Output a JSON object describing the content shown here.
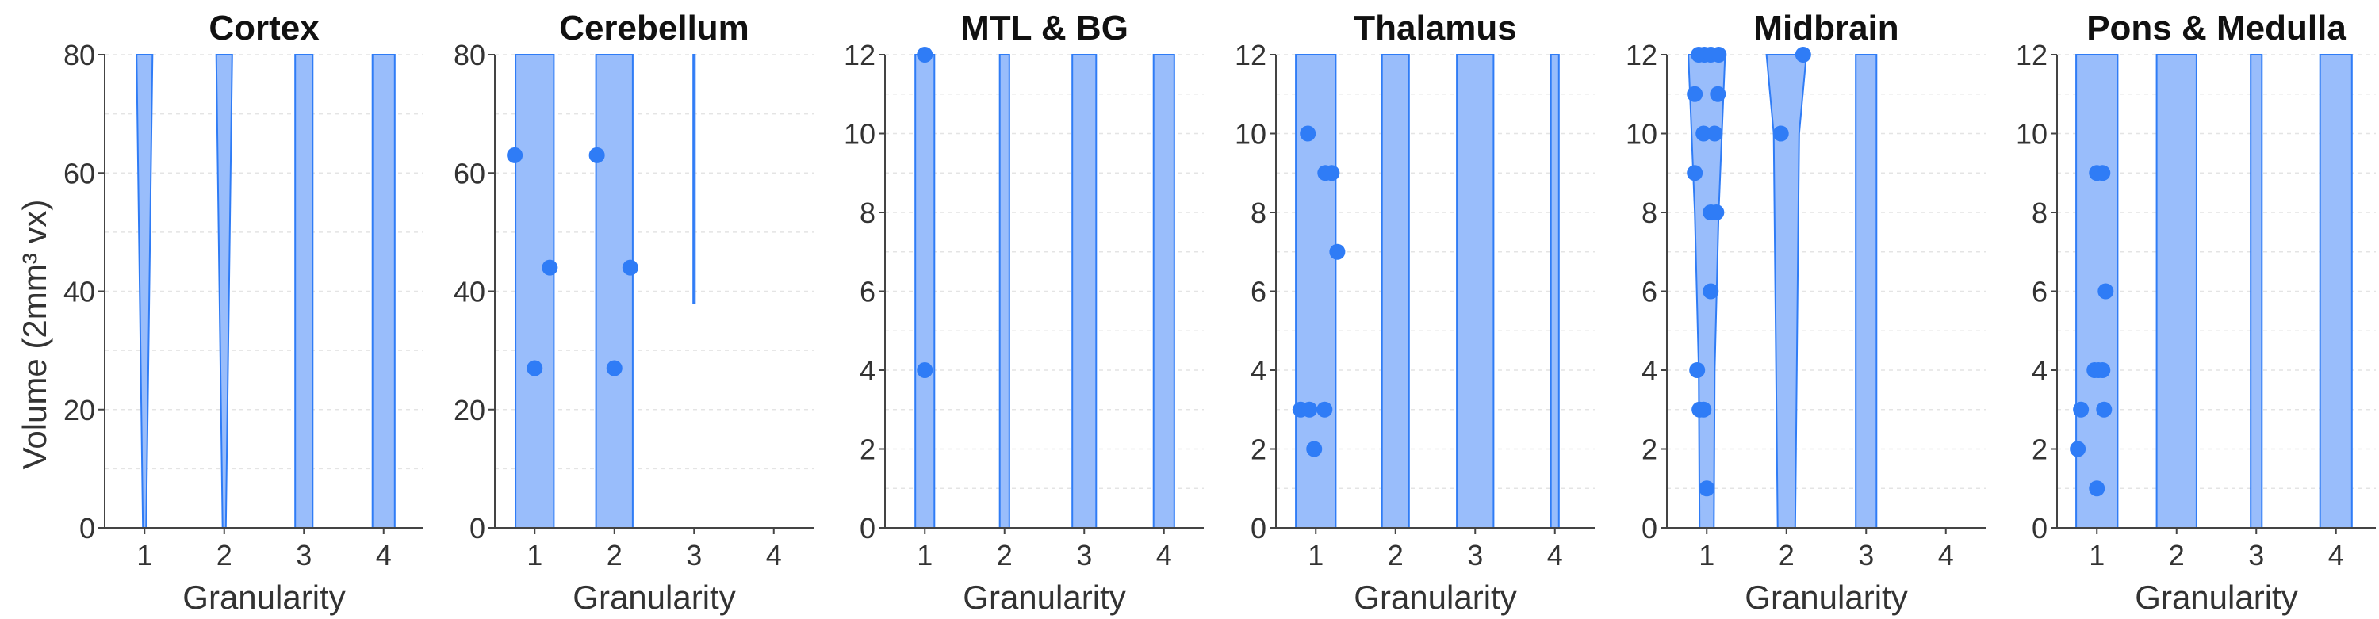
{
  "chart_data": {
    "type": "violin",
    "ylabel": "Volume (2mm³ vx)",
    "colors": {
      "fill": "#99bdfb",
      "stroke": "#2f7cf6",
      "point": "#2f7cf6"
    },
    "panels": [
      {
        "title": "Cortex",
        "xlabel": "Granularity",
        "xticks": [
          1,
          2,
          3,
          4
        ],
        "ylim": [
          0,
          80
        ],
        "yticks": [
          0,
          20,
          40,
          60,
          80
        ],
        "violins": [
          {
            "x": 1,
            "shape": [
              [
                0,
                0.02
              ],
              [
                80,
                0.1
              ]
            ]
          },
          {
            "x": 2,
            "shape": [
              [
                0,
                0.02
              ],
              [
                80,
                0.1
              ]
            ]
          },
          {
            "x": 3,
            "shape": [
              [
                0,
                0.11
              ],
              [
                80,
                0.11
              ]
            ]
          },
          {
            "x": 4,
            "shape": [
              [
                0,
                0.14
              ],
              [
                80,
                0.14
              ]
            ]
          }
        ],
        "points": []
      },
      {
        "title": "Cerebellum",
        "xlabel": "Granularity",
        "xticks": [
          1,
          2,
          3,
          4
        ],
        "ylim": [
          0,
          80
        ],
        "yticks": [
          0,
          20,
          40,
          60,
          80
        ],
        "violins": [
          {
            "x": 1,
            "shape": [
              [
                0,
                0.24
              ],
              [
                80,
                0.24
              ]
            ]
          },
          {
            "x": 2,
            "shape": [
              [
                0,
                0.23
              ],
              [
                80,
                0.23
              ]
            ]
          },
          {
            "x": 3,
            "shape": [
              [
                38,
                0.01
              ],
              [
                80,
                0.01
              ]
            ]
          }
        ],
        "points": [
          {
            "x": 0.75,
            "y": 63
          },
          {
            "x": 1.19,
            "y": 44
          },
          {
            "x": 1.0,
            "y": 27
          },
          {
            "x": 1.78,
            "y": 63
          },
          {
            "x": 2.2,
            "y": 44
          },
          {
            "x": 2.0,
            "y": 27
          }
        ]
      },
      {
        "title": "MTL & BG",
        "xlabel": "Granularity",
        "xticks": [
          1,
          2,
          3,
          4
        ],
        "ylim": [
          0,
          12
        ],
        "yticks": [
          0,
          2,
          4,
          6,
          8,
          10,
          12
        ],
        "violins": [
          {
            "x": 1,
            "shape": [
              [
                0,
                0.12
              ],
              [
                12,
                0.12
              ]
            ]
          },
          {
            "x": 2,
            "shape": [
              [
                0,
                0.06
              ],
              [
                12,
                0.06
              ]
            ]
          },
          {
            "x": 3,
            "shape": [
              [
                0,
                0.15
              ],
              [
                12,
                0.15
              ]
            ]
          },
          {
            "x": 4,
            "shape": [
              [
                0,
                0.13
              ],
              [
                12,
                0.13
              ]
            ]
          }
        ],
        "points": [
          {
            "x": 1.0,
            "y": 12
          },
          {
            "x": 1.0,
            "y": 4
          }
        ]
      },
      {
        "title": "Thalamus",
        "xlabel": "Granularity",
        "xticks": [
          1,
          2,
          3,
          4
        ],
        "ylim": [
          0,
          12
        ],
        "yticks": [
          0,
          2,
          4,
          6,
          8,
          10,
          12
        ],
        "violins": [
          {
            "x": 1,
            "shape": [
              [
                0,
                0.25
              ],
              [
                12,
                0.25
              ]
            ]
          },
          {
            "x": 2,
            "shape": [
              [
                0,
                0.17
              ],
              [
                12,
                0.17
              ]
            ]
          },
          {
            "x": 3,
            "shape": [
              [
                0,
                0.23
              ],
              [
                12,
                0.23
              ]
            ]
          },
          {
            "x": 4,
            "shape": [
              [
                0,
                0.05
              ],
              [
                12,
                0.05
              ]
            ]
          }
        ],
        "points": [
          {
            "x": 0.9,
            "y": 10
          },
          {
            "x": 1.12,
            "y": 9
          },
          {
            "x": 1.2,
            "y": 9
          },
          {
            "x": 1.27,
            "y": 7
          },
          {
            "x": 0.81,
            "y": 3
          },
          {
            "x": 0.92,
            "y": 3
          },
          {
            "x": 1.11,
            "y": 3
          },
          {
            "x": 0.98,
            "y": 2
          }
        ]
      },
      {
        "title": "Midbrain",
        "xlabel": "Granularity",
        "xticks": [
          1,
          2,
          3,
          4
        ],
        "ylim": [
          0,
          12
        ],
        "yticks": [
          0,
          2,
          4,
          6,
          8,
          10,
          12
        ],
        "violins": [
          {
            "x": 1,
            "shape": [
              [
                0,
                0.09
              ],
              [
                4,
                0.1
              ],
              [
                8,
                0.15
              ],
              [
                12,
                0.23
              ]
            ]
          },
          {
            "x": 2,
            "shape": [
              [
                0,
                0.11
              ],
              [
                10,
                0.16
              ],
              [
                12,
                0.25
              ]
            ]
          },
          {
            "x": 3,
            "shape": [
              [
                0,
                0.13
              ],
              [
                12,
                0.13
              ]
            ]
          }
        ],
        "points": [
          {
            "x": 0.9,
            "y": 12
          },
          {
            "x": 0.97,
            "y": 12
          },
          {
            "x": 1.05,
            "y": 12
          },
          {
            "x": 1.15,
            "y": 12
          },
          {
            "x": 0.85,
            "y": 11
          },
          {
            "x": 1.14,
            "y": 11
          },
          {
            "x": 0.96,
            "y": 10
          },
          {
            "x": 1.1,
            "y": 10
          },
          {
            "x": 0.85,
            "y": 9
          },
          {
            "x": 1.05,
            "y": 8
          },
          {
            "x": 1.12,
            "y": 8
          },
          {
            "x": 1.05,
            "y": 6
          },
          {
            "x": 0.88,
            "y": 4
          },
          {
            "x": 0.91,
            "y": 3
          },
          {
            "x": 0.96,
            "y": 3
          },
          {
            "x": 1.0,
            "y": 1
          },
          {
            "x": 2.21,
            "y": 12
          },
          {
            "x": 1.93,
            "y": 10
          }
        ]
      },
      {
        "title": "Pons & Medulla",
        "xlabel": "Granularity",
        "xticks": [
          1,
          2,
          3,
          4
        ],
        "ylim": [
          0,
          12
        ],
        "yticks": [
          0,
          2,
          4,
          6,
          8,
          10,
          12
        ],
        "violins": [
          {
            "x": 1,
            "shape": [
              [
                0,
                0.26
              ],
              [
                12,
                0.26
              ]
            ]
          },
          {
            "x": 2,
            "shape": [
              [
                0,
                0.25
              ],
              [
                12,
                0.25
              ]
            ]
          },
          {
            "x": 3,
            "shape": [
              [
                0,
                0.07
              ],
              [
                12,
                0.07
              ]
            ]
          },
          {
            "x": 4,
            "shape": [
              [
                0,
                0.2
              ],
              [
                12,
                0.2
              ]
            ]
          }
        ],
        "points": [
          {
            "x": 1.0,
            "y": 9
          },
          {
            "x": 1.07,
            "y": 9
          },
          {
            "x": 1.11,
            "y": 6
          },
          {
            "x": 0.97,
            "y": 4
          },
          {
            "x": 1.02,
            "y": 4
          },
          {
            "x": 1.07,
            "y": 4
          },
          {
            "x": 0.8,
            "y": 3
          },
          {
            "x": 1.09,
            "y": 3
          },
          {
            "x": 0.76,
            "y": 2
          },
          {
            "x": 1.0,
            "y": 1
          }
        ]
      }
    ]
  }
}
